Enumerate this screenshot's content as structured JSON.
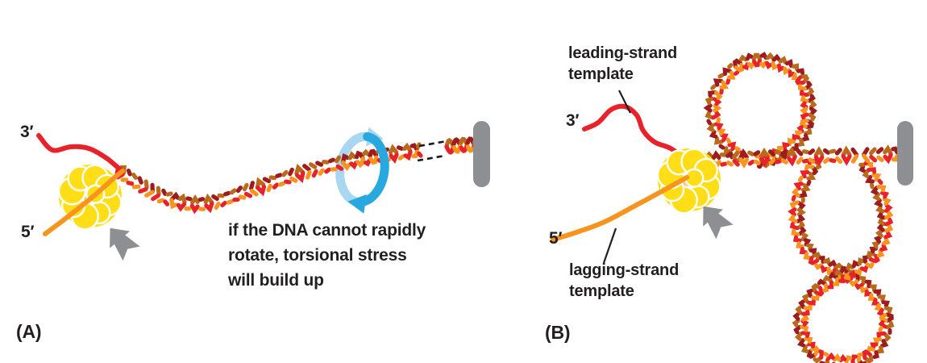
{
  "figure": {
    "panel_a": {
      "label": "(A)",
      "three_prime": "3′",
      "five_prime": "5′",
      "caption": "if the DNA cannot rapidly\nrotate, torsional stress\nwill build up"
    },
    "panel_b": {
      "label": "(B)",
      "three_prime": "3′",
      "five_prime": "5′",
      "leading_label": "leading-strand\ntemplate",
      "lagging_label": "lagging-strand\ntemplate"
    },
    "icons": {
      "rotation_arrow": "rotation-arrow-icon",
      "movement_arrow": "movement-arrow-icon",
      "anchor_rod": "anchor-rod",
      "replication_protein": "replisome-blob"
    }
  },
  "colors": {
    "strand_red": "#E8222A",
    "strand_red_dark": "#9E1B1F",
    "strand_orange": "#F7941E",
    "strand_orange_dark": "#B96A1B",
    "protein_yellow": "#FFDE17",
    "protein_center": "#F9C98F",
    "gray": "#8D8F92",
    "blue_dark": "#29A8DF",
    "blue_light": "#A9D7F2",
    "text": "#231F20"
  }
}
